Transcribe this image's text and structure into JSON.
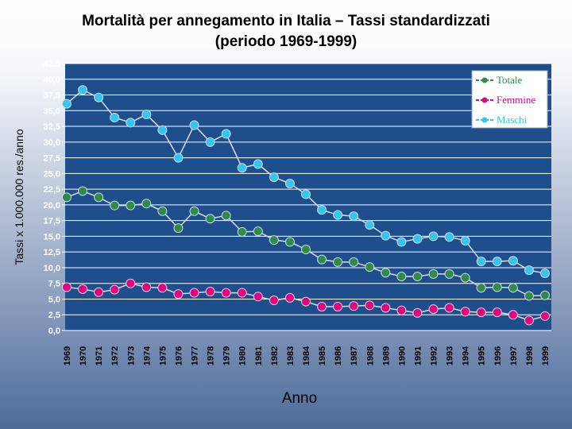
{
  "page": {
    "title_line1": "Mortalità per annegamento in Italia – Tassi standardizzati",
    "title_line2": "(periodo 1969-1999)"
  },
  "chart_data": {
    "type": "line",
    "title": "Mortalità per annegamento in Italia – Tassi standardizzati (periodo 1969-1999)",
    "xlabel": "Anno",
    "ylabel": "Tassi x 1.000.000 res./anno",
    "ylim": [
      0,
      42.5
    ],
    "ytick_step": 2.5,
    "ytick_labels": [
      "0,0",
      "2,5",
      "5,0",
      "7,5",
      "10,0",
      "12,5",
      "15,0",
      "17,5",
      "20,0",
      "22,5",
      "25,0",
      "27,5",
      "30,0",
      "32,5",
      "35,0",
      "37,5",
      "40,0",
      "42,5"
    ],
    "categories": [
      "1969",
      "1970",
      "1971",
      "1972",
      "1973",
      "1974",
      "1975",
      "1976",
      "1977",
      "1978",
      "1979",
      "1980",
      "1981",
      "1982",
      "1983",
      "1984",
      "1985",
      "1986",
      "1987",
      "1988",
      "1989",
      "1990",
      "1991",
      "1992",
      "1993",
      "1994",
      "1995",
      "1996",
      "1997",
      "1998",
      "1999"
    ],
    "legend_position": "top-right",
    "series": [
      {
        "name": "Totale",
        "color": "#2e8b4a",
        "values": [
          21.2,
          22.2,
          21.2,
          19.9,
          19.9,
          20.2,
          19.0,
          16.3,
          19.0,
          17.8,
          18.3,
          15.7,
          15.8,
          14.4,
          14.1,
          12.9,
          11.3,
          10.9,
          10.9,
          10.1,
          9.2,
          8.6,
          8.6,
          9.0,
          9.0,
          8.4,
          6.8,
          6.9,
          6.8,
          5.5,
          5.6
        ]
      },
      {
        "name": "Femmine",
        "color": "#e6007e",
        "values": [
          6.9,
          6.6,
          6.1,
          6.5,
          7.5,
          6.9,
          6.8,
          5.8,
          6.0,
          6.2,
          6.0,
          6.0,
          5.4,
          4.8,
          5.2,
          4.6,
          3.8,
          3.8,
          3.9,
          4.0,
          3.6,
          3.2,
          2.8,
          3.4,
          3.6,
          3.0,
          2.9,
          2.9,
          2.5,
          1.6,
          2.3
        ]
      },
      {
        "name": "Maschi",
        "color": "#33c6ee",
        "values": [
          36.1,
          38.3,
          37.1,
          33.9,
          33.1,
          34.4,
          31.9,
          27.5,
          32.7,
          30.0,
          31.3,
          25.9,
          26.5,
          24.4,
          23.4,
          21.7,
          19.2,
          18.4,
          18.2,
          16.8,
          15.1,
          14.1,
          14.6,
          15.0,
          14.9,
          14.3,
          11.0,
          11.0,
          11.1,
          9.6,
          9.1
        ]
      }
    ]
  }
}
